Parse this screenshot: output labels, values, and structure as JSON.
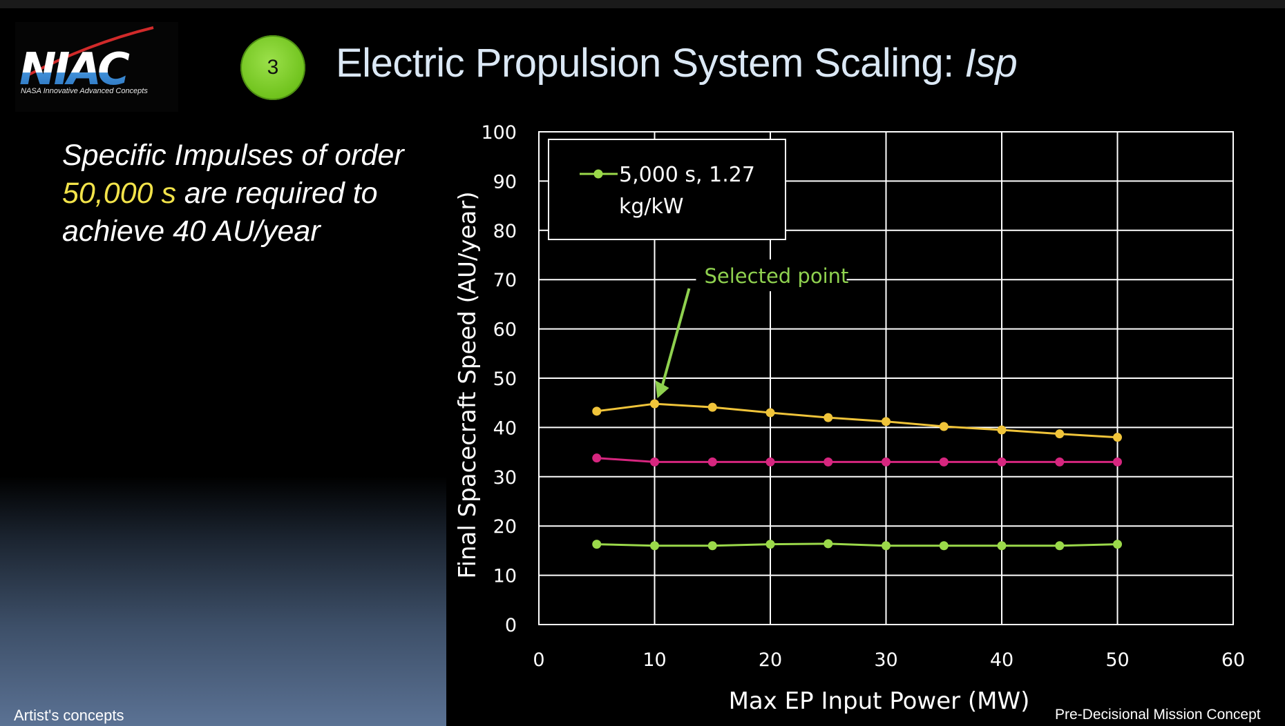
{
  "logo": {
    "text": "NIAC",
    "subtitle": "NASA Innovative Advanced Concepts"
  },
  "slide": {
    "number": "3",
    "title_main": "Electric Propulsion System Scaling: ",
    "title_em": "Isp"
  },
  "body": {
    "part1": "Specific Impulses of order ",
    "highlight": "50,000 s",
    "part2": " are required to achieve 40 AU/year"
  },
  "footer": {
    "left": "Artist's concepts",
    "right": "Pre-Decisional Mission Concept"
  },
  "colors": {
    "accent_title": "#dbe8f5",
    "highlight": "#f2e34a",
    "series_green": "#9bd94a",
    "series_magenta": "#d6267f",
    "series_yellow": "#f0c43a",
    "annotation": "#8fd14f"
  },
  "chart_data": {
    "type": "line",
    "xlabel": "Max EP Input Power (MW)",
    "ylabel": "Final Spacecraft Speed (AU/year)",
    "xlim": [
      0,
      60
    ],
    "ylim": [
      0,
      100
    ],
    "xticks": [
      0,
      10,
      20,
      30,
      40,
      50,
      60
    ],
    "yticks": [
      0,
      10,
      20,
      30,
      40,
      50,
      60,
      70,
      80,
      90,
      100
    ],
    "grid": true,
    "legend_position": "top-left",
    "x": [
      5,
      10,
      15,
      20,
      25,
      30,
      35,
      40,
      45,
      50
    ],
    "series": [
      {
        "name": "5,000 s, 1.27 kg/kW",
        "legend_lines": [
          "5,000 s, 1.27",
          "kg/kW"
        ],
        "color": "#9bd94a",
        "in_legend": true,
        "values": [
          16.3,
          16.0,
          16.0,
          16.3,
          16.4,
          16.0,
          16.0,
          16.0,
          16.0,
          16.3
        ]
      },
      {
        "color": "#d6267f",
        "in_legend": false,
        "values": [
          33.8,
          33.0,
          33.0,
          33.0,
          33.0,
          33.0,
          33.0,
          33.0,
          33.0,
          33.0
        ]
      },
      {
        "color": "#f0c43a",
        "in_legend": false,
        "values": [
          43.3,
          44.8,
          44.1,
          43.0,
          42.0,
          41.2,
          40.2,
          39.5,
          38.7,
          38.0
        ]
      }
    ],
    "annotation": {
      "text": "Selected point",
      "x": 10,
      "y": 44.8
    }
  }
}
